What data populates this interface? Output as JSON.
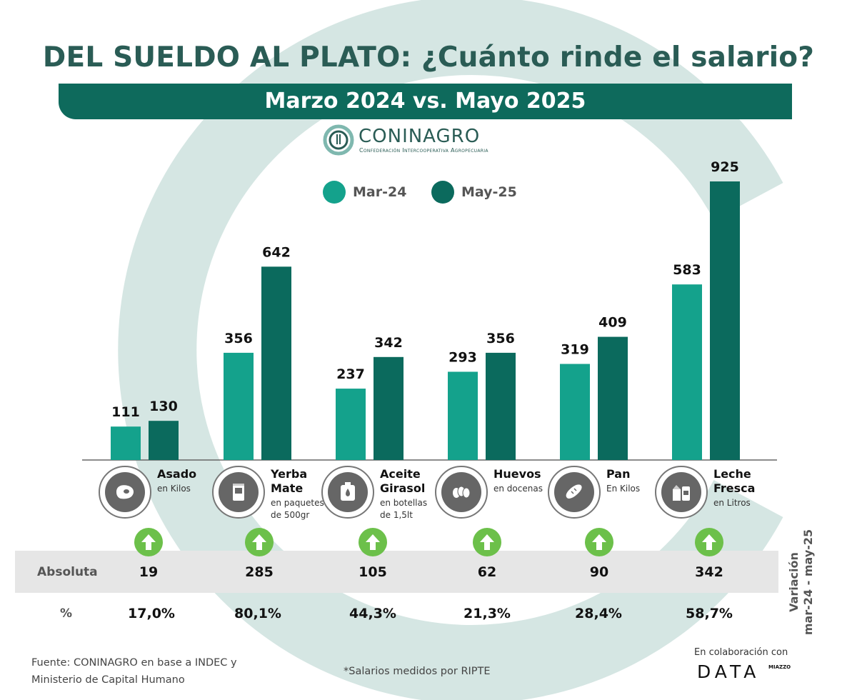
{
  "title": "DEL SUELDO AL PLATO: ¿Cuánto rinde el salario?",
  "subtitle": "Marzo 2024 vs. Mayo 2025",
  "logo": {
    "name": "CONINAGRO",
    "tagline": "Confederación Intercooperativa Agropecuaria"
  },
  "colors": {
    "mar24": "#14a28c",
    "may25": "#0b6a5d",
    "accent": "#6cc04a",
    "background_arc": "#d5e6e3"
  },
  "chart_data": {
    "type": "bar",
    "title": "DEL SUELDO AL PLATO: ¿Cuánto rinde el salario?",
    "subtitle": "Marzo 2024 vs. Mayo 2025",
    "categories": [
      "Asado",
      "Yerba Mate",
      "Aceite Girasol",
      "Huevos",
      "Pan",
      "Leche Fresca"
    ],
    "units": [
      "en Kilos",
      "en paquetes de 500gr",
      "en botellas de 1,5lt",
      "en docenas",
      "En Kilos",
      "en Litros"
    ],
    "series": [
      {
        "name": "Mar-24",
        "values": [
          111,
          356,
          237,
          293,
          319,
          583
        ]
      },
      {
        "name": "May-25",
        "values": [
          130,
          642,
          342,
          356,
          409,
          925
        ]
      }
    ],
    "ylim": [
      0,
      925
    ],
    "grid": false,
    "legend": "top-center"
  },
  "categories_display": [
    {
      "name_lines": [
        "Asado"
      ],
      "unit_lines": [
        "en Kilos"
      ],
      "icon": "steak-icon"
    },
    {
      "name_lines": [
        "Yerba",
        "Mate"
      ],
      "unit_lines": [
        "en paquetes",
        "de 500gr"
      ],
      "icon": "yerba-package-icon"
    },
    {
      "name_lines": [
        "Aceite",
        "Girasol"
      ],
      "unit_lines": [
        "en botellas",
        "de 1,5lt"
      ],
      "icon": "oil-bottle-icon"
    },
    {
      "name_lines": [
        "Huevos"
      ],
      "unit_lines": [
        "en docenas"
      ],
      "icon": "eggs-icon"
    },
    {
      "name_lines": [
        "Pan"
      ],
      "unit_lines": [
        "En Kilos"
      ],
      "icon": "bread-icon"
    },
    {
      "name_lines": [
        "Leche",
        "Fresca"
      ],
      "unit_lines": [
        "en Litros"
      ],
      "icon": "milk-icon"
    }
  ],
  "variation": {
    "label_abs": "Absoluta",
    "label_pct": "%",
    "absolute": [
      "19",
      "285",
      "105",
      "62",
      "90",
      "342"
    ],
    "percent": [
      "17,0%",
      "80,1%",
      "44,3%",
      "21,3%",
      "28,4%",
      "58,7%"
    ],
    "side_line1": "Variación",
    "side_line2": "mar-24 - may-25"
  },
  "footer": {
    "source_line1": "Fuente: CONINAGRO en base a INDEC y",
    "source_line2": "Ministerio de Capital Humano",
    "note": "*Salarios medidos por RIPTE",
    "collab": "En colaboración con",
    "data_logo": "DATA",
    "data_logo_sub": "MIAZZO"
  }
}
